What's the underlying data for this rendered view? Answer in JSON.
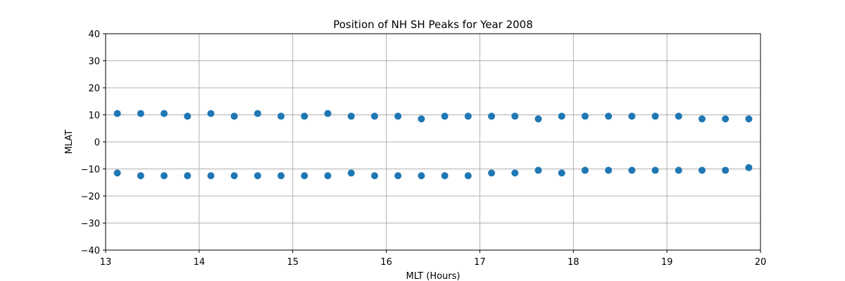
{
  "chart_data": {
    "type": "scatter",
    "title": "Position of NH SH Peaks for Year 2008",
    "xlabel": "MLT (Hours)",
    "ylabel": "MLAT",
    "xlim": [
      13,
      20
    ],
    "ylim": [
      -40,
      40
    ],
    "xticks": [
      13,
      14,
      15,
      16,
      17,
      18,
      19,
      20
    ],
    "yticks": [
      -40,
      -30,
      -20,
      -10,
      0,
      10,
      20,
      30,
      40
    ],
    "grid": true,
    "marker_color": "#1f77b4",
    "series": [
      {
        "x": [
          13.125,
          13.375,
          13.625,
          13.875,
          14.125,
          14.375,
          14.625,
          14.875,
          15.125,
          15.375,
          15.625,
          15.875,
          16.125,
          16.375,
          16.625,
          16.875,
          17.125,
          17.375,
          17.625,
          17.875,
          18.125,
          18.375,
          18.625,
          18.875,
          19.125,
          19.375,
          19.625,
          19.875
        ],
        "y": [
          10.5,
          10.5,
          10.5,
          9.5,
          10.5,
          9.5,
          10.5,
          9.5,
          9.5,
          10.5,
          9.5,
          9.5,
          9.5,
          8.5,
          9.5,
          9.5,
          9.5,
          9.5,
          8.5,
          9.5,
          9.5,
          9.5,
          9.5,
          9.5,
          9.5,
          8.5,
          8.5,
          8.5
        ]
      },
      {
        "x": [
          13.125,
          13.375,
          13.625,
          13.875,
          14.125,
          14.375,
          14.625,
          14.875,
          15.125,
          15.375,
          15.625,
          15.875,
          16.125,
          16.375,
          16.625,
          16.875,
          17.125,
          17.375,
          17.625,
          17.875,
          18.125,
          18.375,
          18.625,
          18.875,
          19.125,
          19.375,
          19.625,
          19.875
        ],
        "y": [
          -11.5,
          -12.5,
          -12.5,
          -12.5,
          -12.5,
          -12.5,
          -12.5,
          -12.5,
          -12.5,
          -12.5,
          -11.5,
          -12.5,
          -12.5,
          -12.5,
          -12.5,
          -12.5,
          -11.5,
          -11.5,
          -10.5,
          -11.5,
          -10.5,
          -10.5,
          -10.5,
          -10.5,
          -10.5,
          -10.5,
          -10.5,
          -9.5
        ]
      }
    ]
  }
}
